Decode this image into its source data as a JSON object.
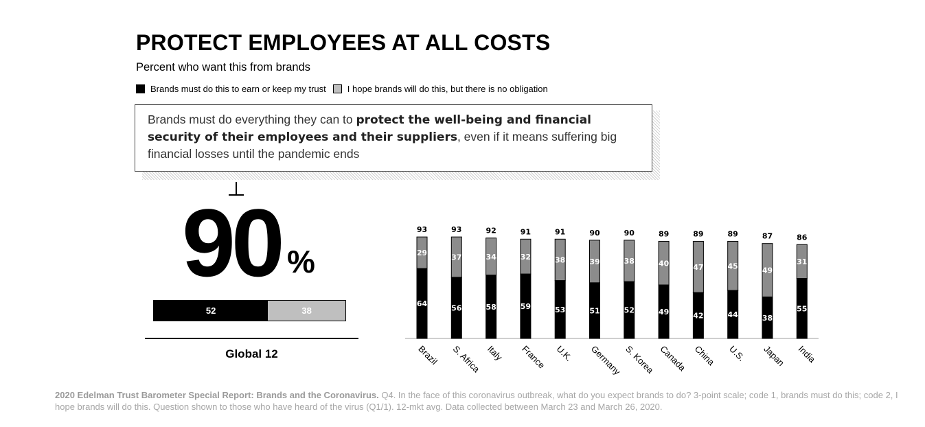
{
  "title": "PROTECT EMPLOYEES AT ALL COSTS",
  "subtitle": "Percent who want this from brands",
  "legend": [
    {
      "label": "Brands must do this to earn or keep my trust",
      "color": "#000000"
    },
    {
      "label": "I hope brands will do this, but there is no obligation",
      "color": "#bfbfbf"
    }
  ],
  "statement": {
    "pre": "Brands must do everything they can to ",
    "bold": "protect the well-being and financial security of their employees and their suppliers",
    "post": ", even if it means suffering big financial losses until the pandemic ends"
  },
  "global": {
    "total": "90",
    "percent_sign": "%",
    "must": 52,
    "hope": 38,
    "label": "Global 12"
  },
  "chart_data": {
    "type": "bar",
    "stacked": true,
    "categories": [
      "Brazil",
      "S. Africa",
      "Italy",
      "France",
      "U.K.",
      "Germany",
      "S. Korea",
      "Canada",
      "China",
      "U.S.",
      "Japan",
      "India"
    ],
    "series": [
      {
        "name": "Brands must do this to earn or keep my trust",
        "color": "#000000",
        "values": [
          64,
          56,
          58,
          59,
          53,
          51,
          52,
          49,
          42,
          44,
          38,
          55
        ]
      },
      {
        "name": "I hope brands will do this, but there is no obligation",
        "color": "#8c8c8c",
        "values": [
          29,
          37,
          34,
          32,
          38,
          39,
          38,
          40,
          47,
          45,
          49,
          31
        ]
      }
    ],
    "totals": [
      93,
      93,
      92,
      91,
      91,
      90,
      90,
      89,
      89,
      89,
      87,
      86
    ],
    "ylim": [
      0,
      100
    ]
  },
  "footnote": {
    "bold": "2020 Edelman Trust Barometer Special Report: Brands and the Coronavirus.",
    "text": " Q4. In the face of this coronavirus outbreak, what do you expect brands to do? 3-point scale; code 1, brands must do this; code 2, I hope brands will do this. Question shown to those who have heard of the virus (Q1/1). 12-mkt avg. Data collected between March 23 and March 26, 2020."
  }
}
